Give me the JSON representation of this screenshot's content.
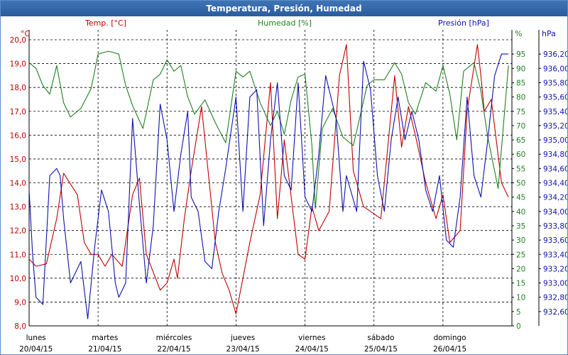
{
  "title": "Temperatura, Presión, Humedad",
  "colors": {
    "temp": "#c00000",
    "hum": "#208020",
    "pres": "#1010b0",
    "grid": "#000000",
    "titlebar": "#2a5c9e"
  },
  "chart_data": {
    "type": "line",
    "title": "Temperatura, Presión, Humedad",
    "x_range": [
      0,
      7
    ],
    "x_tick_labels": [
      {
        "day": "lunes",
        "date": "20/04/15"
      },
      {
        "day": "martes",
        "date": "21/04/15"
      },
      {
        "day": "miércoles",
        "date": "22/04/15"
      },
      {
        "day": "jueves",
        "date": "23/04/15"
      },
      {
        "day": "viernes",
        "date": "24/04/15"
      },
      {
        "day": "sábado",
        "date": "25/04/15"
      },
      {
        "day": "domingo",
        "date": "26/04/15"
      }
    ],
    "axes": {
      "temp": {
        "label": "Temp. [°C]",
        "unit": "°C",
        "range": [
          8,
          20
        ],
        "ticks": [
          "20,0",
          "19,0",
          "18,0",
          "17,0",
          "16,0",
          "15,0",
          "14,0",
          "13,0",
          "12,0",
          "11,0",
          "10,0",
          "9,0",
          "8,0"
        ]
      },
      "hum": {
        "label": "Humedad [%]",
        "unit": "%",
        "range": [
          0,
          100
        ],
        "ticks": [
          "95",
          "90",
          "85",
          "80",
          "75",
          "70",
          "65",
          "60",
          "55",
          "50",
          "45",
          "40",
          "35",
          "30",
          "25",
          "20",
          "15",
          "10",
          "5",
          "0"
        ]
      },
      "pres": {
        "label": "Presión [hPa]",
        "unit": "hPa",
        "range": [
          932.4,
          936.4
        ],
        "ticks": [
          "936,20",
          "936,00",
          "935,80",
          "935,60",
          "935,40",
          "935,20",
          "935,00",
          "934,80",
          "934,60",
          "934,40",
          "934,20",
          "934,00",
          "933,80",
          "933,60",
          "933,40",
          "933,20",
          "933,00",
          "932,80",
          "932,60"
        ]
      }
    },
    "series": [
      {
        "name": "Temp. [°C]",
        "axis": "temp",
        "x": [
          0,
          0.1,
          0.25,
          0.4,
          0.5,
          0.7,
          0.8,
          0.9,
          1.0,
          1.1,
          1.2,
          1.35,
          1.5,
          1.6,
          1.7,
          1.9,
          2.0,
          2.1,
          2.15,
          2.25,
          2.35,
          2.5,
          2.7,
          2.8,
          2.9,
          3.0,
          3.2,
          3.35,
          3.5,
          3.6,
          3.7,
          3.9,
          4.0,
          4.1,
          4.2,
          4.35,
          4.5,
          4.6,
          4.7,
          4.85,
          4.95,
          5.1,
          5.3,
          5.4,
          5.5,
          5.6,
          5.75,
          5.9,
          6.0,
          6.1,
          6.25,
          6.35,
          6.5,
          6.55,
          6.6,
          6.7,
          6.85,
          6.95
        ],
        "values": [
          10.8,
          10.5,
          10.6,
          12.5,
          14.4,
          13.5,
          11.5,
          11.0,
          11.0,
          10.5,
          11.0,
          10.5,
          13.5,
          14.2,
          11.0,
          9.5,
          9.8,
          10.8,
          10.0,
          12.5,
          14.5,
          17.2,
          11.5,
          10.2,
          9.5,
          8.5,
          11.5,
          13.5,
          18.2,
          12.5,
          15.8,
          11.0,
          10.8,
          13.0,
          12.0,
          12.8,
          18.5,
          19.8,
          14.5,
          13.0,
          12.8,
          12.5,
          18.5,
          15.5,
          17.2,
          16.0,
          14.0,
          12.5,
          13.5,
          11.5,
          12.0,
          17.0,
          19.8,
          18.5,
          17.0,
          17.5,
          14.0,
          13.4
        ]
      },
      {
        "name": "Humedad [%]",
        "axis": "hum",
        "x": [
          0,
          0.1,
          0.2,
          0.3,
          0.4,
          0.5,
          0.6,
          0.75,
          0.9,
          1.0,
          1.15,
          1.3,
          1.4,
          1.5,
          1.65,
          1.8,
          1.9,
          2.0,
          2.1,
          2.2,
          2.3,
          2.4,
          2.55,
          2.7,
          2.85,
          3.0,
          3.1,
          3.2,
          3.35,
          3.5,
          3.6,
          3.7,
          3.8,
          3.9,
          4.0,
          4.1,
          4.15,
          4.25,
          4.4,
          4.55,
          4.7,
          4.9,
          5.0,
          5.15,
          5.3,
          5.4,
          5.5,
          5.6,
          5.75,
          5.9,
          6.0,
          6.1,
          6.2,
          6.3,
          6.45,
          6.55,
          6.65,
          6.8,
          6.95
        ],
        "values": [
          92,
          90,
          84,
          81,
          91,
          78,
          73,
          76,
          83,
          95,
          96,
          95,
          84,
          77,
          69,
          86,
          88,
          93,
          89,
          91,
          80,
          74,
          79,
          71,
          64,
          89,
          87,
          89,
          78,
          70,
          75,
          67,
          79,
          87,
          88,
          63,
          41,
          69,
          76,
          66,
          63,
          84,
          86,
          86,
          92,
          88,
          78,
          74,
          85,
          82,
          91,
          81,
          65,
          89,
          92,
          82,
          66,
          48,
          91
        ]
      },
      {
        "name": "Presión [hPa]",
        "axis": "pres",
        "x": [
          0,
          0.05,
          0.1,
          0.2,
          0.3,
          0.4,
          0.45,
          0.5,
          0.6,
          0.75,
          0.85,
          0.95,
          1.05,
          1.15,
          1.25,
          1.3,
          1.4,
          1.5,
          1.6,
          1.7,
          1.8,
          1.9,
          2.0,
          2.1,
          2.2,
          2.3,
          2.35,
          2.45,
          2.55,
          2.65,
          2.75,
          2.85,
          3.0,
          3.1,
          3.2,
          3.3,
          3.4,
          3.5,
          3.6,
          3.7,
          3.8,
          3.9,
          4.0,
          4.1,
          4.2,
          4.3,
          4.45,
          4.55,
          4.6,
          4.75,
          4.85,
          4.95,
          5.05,
          5.15,
          5.25,
          5.35,
          5.45,
          5.55,
          5.65,
          5.75,
          5.85,
          5.95,
          6.05,
          6.15,
          6.25,
          6.35,
          6.45,
          6.55,
          6.65,
          6.75,
          6.85,
          6.95
        ],
        "values": [
          934.3,
          933.4,
          932.8,
          932.7,
          934.5,
          934.6,
          934.5,
          933.9,
          933.0,
          933.3,
          932.5,
          933.5,
          934.3,
          934.0,
          933.0,
          932.8,
          933.0,
          935.3,
          934.1,
          933.0,
          933.8,
          935.5,
          935.0,
          934.0,
          934.8,
          935.4,
          934.2,
          934.0,
          933.3,
          933.2,
          934.0,
          934.6,
          935.6,
          934.0,
          935.6,
          935.7,
          933.8,
          935.0,
          935.8,
          934.5,
          934.3,
          935.8,
          934.2,
          934.0,
          934.8,
          935.9,
          935.3,
          934.0,
          934.5,
          934.0,
          936.1,
          935.7,
          934.5,
          934.0,
          935.0,
          935.6,
          935.0,
          935.4,
          935.0,
          934.3,
          934.0,
          934.5,
          933.6,
          933.5,
          934.2,
          935.6,
          934.5,
          934.2,
          935.0,
          935.9,
          936.2,
          936.2
        ]
      }
    ]
  }
}
